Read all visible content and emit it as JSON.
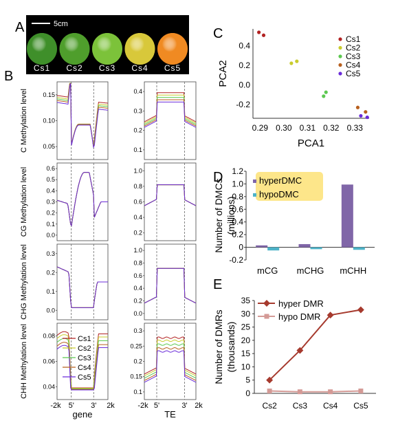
{
  "panel_labels": [
    "A",
    "B",
    "C",
    "D",
    "E"
  ],
  "panel_a": {
    "scale_bar": "5cm",
    "fruits": [
      {
        "label": "Cs1",
        "color": "#3f8f2a"
      },
      {
        "label": "Cs2",
        "color": "#4f9e2c"
      },
      {
        "label": "Cs3",
        "color": "#7cc23a"
      },
      {
        "label": "Cs4",
        "color": "#d8c83a"
      },
      {
        "label": "Cs5",
        "color": "#f08a22"
      }
    ]
  },
  "colors": {
    "Cs1": "#b22222",
    "Cs2": "#c9cc2e",
    "Cs3": "#5cc850",
    "Cs4": "#b8601e",
    "Cs5": "#6a2bd9",
    "hyper_bar": "#8066a8",
    "hypo_bar": "#4db3c8",
    "hyper_line": "#a63a2e",
    "hypo_line": "#d49a96",
    "legend_highlight": "#fde68a"
  },
  "panel_b": {
    "row_ylabels": [
      "C Methylation level",
      "CG Methylation level",
      "CHG Methylation level",
      "CHH Methylation level"
    ],
    "gene_xticks": [
      "-2k",
      "5'",
      "3'",
      "2k"
    ],
    "te_xticks": [
      "-2k",
      "5'",
      "3'",
      "2k"
    ],
    "gene_xlabel": "gene",
    "te_xlabel": "TE",
    "legend": [
      "Cs1",
      "Cs2",
      "Cs3",
      "Cs4",
      "Cs5"
    ],
    "gene_yticks": [
      [
        "0.05",
        "0.10",
        "0.15"
      ],
      [
        "0.0",
        "0.1",
        "0.2",
        "0.3",
        "0.4",
        "0.5",
        "0.6"
      ],
      [
        "0.0",
        "0.1",
        "0.2",
        "0.3"
      ],
      [
        "0.04",
        "0.06",
        "0.08"
      ]
    ],
    "te_yticks": [
      [
        "0.1",
        "0.2",
        "0.3",
        "0.4"
      ],
      [
        "0.2",
        "0.4",
        "0.6",
        "0.8",
        "1.0"
      ],
      [
        "0.0",
        "0.2",
        "0.4",
        "0.6",
        "0.8",
        "1.0"
      ],
      [
        "0.1",
        "0.15",
        "0.2",
        "0.25",
        "0.3"
      ]
    ]
  },
  "chart_data": [
    {
      "type": "scatter",
      "panel": "C",
      "xlabel": "PCA1",
      "ylabel": "PCA2",
      "xlim": [
        0.287,
        0.336
      ],
      "ylim": [
        -0.34,
        0.57
      ],
      "xticks": [
        "0.29",
        "0.30",
        "0.31",
        "0.32",
        "0.33"
      ],
      "yticks": [
        "-0.2",
        "0.0",
        "0.2",
        "0.4"
      ],
      "legend": "top-right",
      "series": [
        {
          "name": "Cs1",
          "points": [
            [
              0.2895,
              0.535
            ],
            [
              0.2915,
              0.505
            ]
          ]
        },
        {
          "name": "Cs2",
          "points": [
            [
              0.3032,
              0.22
            ],
            [
              0.3055,
              0.24
            ]
          ]
        },
        {
          "name": "Cs3",
          "points": [
            [
              0.3168,
              -0.115
            ],
            [
              0.3178,
              -0.075
            ]
          ]
        },
        {
          "name": "Cs4",
          "points": [
            [
              0.3312,
              -0.23
            ],
            [
              0.3345,
              -0.275
            ]
          ]
        },
        {
          "name": "Cs5",
          "points": [
            [
              0.3325,
              -0.315
            ],
            [
              0.3352,
              -0.33
            ]
          ]
        }
      ]
    },
    {
      "type": "bar",
      "panel": "D",
      "ylabel": "Number of DMCs (millions)",
      "categories": [
        "mCG",
        "mCHG",
        "mCHH"
      ],
      "ylim": [
        -0.2,
        1.2
      ],
      "yticks": [
        "-0.2",
        "0",
        "0.2",
        "0.4",
        "0.6",
        "0.8",
        "1.0",
        "1.2"
      ],
      "legend": "top-left",
      "series": [
        {
          "name": "hyperDMC",
          "values": [
            0.03,
            0.05,
            0.99
          ]
        },
        {
          "name": "hypoDMC",
          "values": [
            -0.05,
            -0.03,
            -0.04
          ]
        }
      ]
    },
    {
      "type": "line",
      "panel": "E",
      "ylabel": "Number of DMRs (thousands)",
      "categories": [
        "Cs2",
        "Cs3",
        "Cs4",
        "Cs5"
      ],
      "ylim": [
        0,
        35
      ],
      "yticks": [
        "0",
        "5",
        "10",
        "15",
        "20",
        "25",
        "30",
        "35"
      ],
      "legend": "top-left",
      "series": [
        {
          "name": "hyper DMR",
          "values": [
            5,
            16.2,
            29.5,
            31.5
          ]
        },
        {
          "name": "hypo  DMR",
          "values": [
            0.9,
            0.6,
            0.6,
            0.9
          ]
        }
      ]
    }
  ]
}
